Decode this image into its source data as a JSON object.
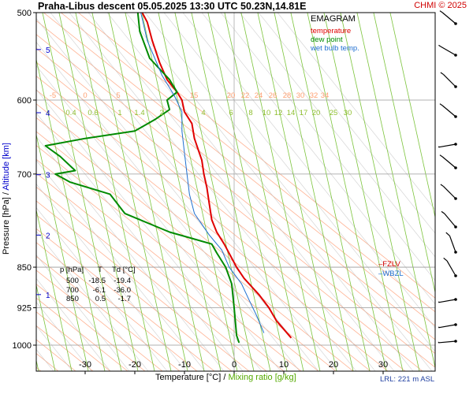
{
  "header": {
    "title": "Praha-Libus   descent  05.05.2025 13:30 UTC  50.23N,14.81E",
    "copyright": "CHMI © 2025"
  },
  "legend": {
    "title": "EMAGRAM",
    "items": [
      {
        "label": "temperature",
        "color": "#e00000"
      },
      {
        "label": "dew point",
        "color": "#008a00"
      },
      {
        "label": "wet bulb temp.",
        "color": "#1f6fd0"
      }
    ]
  },
  "axes": {
    "ylabel_pressure": "Pressure [hPa]  /",
    "ylabel_altitude": "Altitude [km]",
    "xlabel_temperature": "Temperature [°C]  /",
    "xlabel_mixing": "Mixing ratio [g/kg]"
  },
  "markers": {
    "fzlv": "FZLV",
    "wbzl": "WBZL"
  },
  "info_table": {
    "headers": [
      "p [hPa]",
      "T",
      "Td [°C]"
    ],
    "rows": [
      [
        "500",
        "-18.5",
        "-19.4"
      ],
      [
        "700",
        "-6.1",
        "-36.0"
      ],
      [
        "850",
        "0.5",
        "-1.7"
      ]
    ]
  },
  "lrl": "LRL: 221 m ASL",
  "colors": {
    "temperature": "#e00000",
    "dewpoint": "#008a00",
    "wetbulb": "#1f6fd0",
    "isobar": "#999999",
    "dry_adiabat": "#ffb090",
    "moist_adiabat": "#bbbbbb",
    "mixing_ratio": "#7cc43c",
    "axis_label": "#0000cc",
    "title": "#000000",
    "copyright": "#d00000"
  },
  "chart_data": {
    "type": "line",
    "x_axis": {
      "label": "Temperature [°C]",
      "range": [
        -40,
        37
      ],
      "ticks": [
        -30,
        -20,
        -10,
        0,
        10,
        20,
        30
      ]
    },
    "y_axis": {
      "label": "Pressure [hPa]",
      "range": [
        500,
        1020
      ],
      "scale": "log",
      "ticks": [
        500,
        600,
        700,
        850,
        925,
        1000
      ]
    },
    "altitude_ticks": [
      {
        "km": "1",
        "p": 900
      },
      {
        "km": "2",
        "p": 795
      },
      {
        "km": "3",
        "p": 701
      },
      {
        "km": "4",
        "p": 616
      },
      {
        "km": "5",
        "p": 540
      }
    ],
    "series": [
      {
        "name": "temperature",
        "points": [
          [
            -18.5,
            500
          ],
          [
            -17.5,
            510
          ],
          [
            -16.5,
            530
          ],
          [
            -15.0,
            555
          ],
          [
            -13.5,
            575
          ],
          [
            -11.5,
            590
          ],
          [
            -10.5,
            600
          ],
          [
            -10.0,
            615
          ],
          [
            -8.5,
            630
          ],
          [
            -8.0,
            650
          ],
          [
            -7.0,
            670
          ],
          [
            -6.5,
            680
          ],
          [
            -6.1,
            700
          ],
          [
            -5.5,
            720
          ],
          [
            -5.0,
            745
          ],
          [
            -4.5,
            770
          ],
          [
            -3.5,
            790
          ],
          [
            -2.0,
            810
          ],
          [
            0.5,
            850
          ],
          [
            2.0,
            870
          ],
          [
            5.0,
            900
          ],
          [
            7.0,
            925
          ],
          [
            8.5,
            950
          ],
          [
            11.5,
            985
          ]
        ]
      },
      {
        "name": "dew point",
        "points": [
          [
            -19.4,
            500
          ],
          [
            -19.0,
            520
          ],
          [
            -17.0,
            550
          ],
          [
            -13.0,
            575
          ],
          [
            -11.5,
            590
          ],
          [
            -13.5,
            600
          ],
          [
            -13.0,
            612
          ],
          [
            -16.0,
            625
          ],
          [
            -20.0,
            640
          ],
          [
            -30.0,
            650
          ],
          [
            -38.0,
            660
          ],
          [
            -35.0,
            675
          ],
          [
            -32.0,
            695
          ],
          [
            -36.0,
            700
          ],
          [
            -33.0,
            712
          ],
          [
            -25.0,
            730
          ],
          [
            -22.0,
            760
          ],
          [
            -13.0,
            790
          ],
          [
            -4.5,
            810
          ],
          [
            -3.5,
            825
          ],
          [
            -1.7,
            850
          ],
          [
            -0.5,
            880
          ],
          [
            0.0,
            925
          ],
          [
            0.5,
            980
          ],
          [
            1.0,
            995
          ]
        ]
      },
      {
        "name": "wet bulb temp.",
        "points": [
          [
            -18.8,
            500
          ],
          [
            -17.5,
            530
          ],
          [
            -14.5,
            570
          ],
          [
            -12.0,
            595
          ],
          [
            -10.5,
            615
          ],
          [
            -10.5,
            640
          ],
          [
            -10.0,
            670
          ],
          [
            -9.5,
            700
          ],
          [
            -9.0,
            730
          ],
          [
            -8.0,
            760
          ],
          [
            -5.0,
            795
          ],
          [
            -2.5,
            820
          ],
          [
            -1.0,
            850
          ],
          [
            1.5,
            880
          ],
          [
            3.0,
            910
          ],
          [
            4.5,
            940
          ],
          [
            6.0,
            975
          ]
        ]
      }
    ],
    "mixing_ratio_labels": [
      "0.4",
      "0.6",
      "1",
      "1.4",
      "2",
      "4",
      "6",
      "8",
      "10",
      "12",
      "14",
      "17",
      "20",
      "25",
      "30"
    ],
    "dry_adiabat_labels": [
      "-5",
      "0",
      "5",
      "15",
      "20",
      "22",
      "24",
      "26",
      "28",
      "30",
      "32",
      "34"
    ]
  }
}
